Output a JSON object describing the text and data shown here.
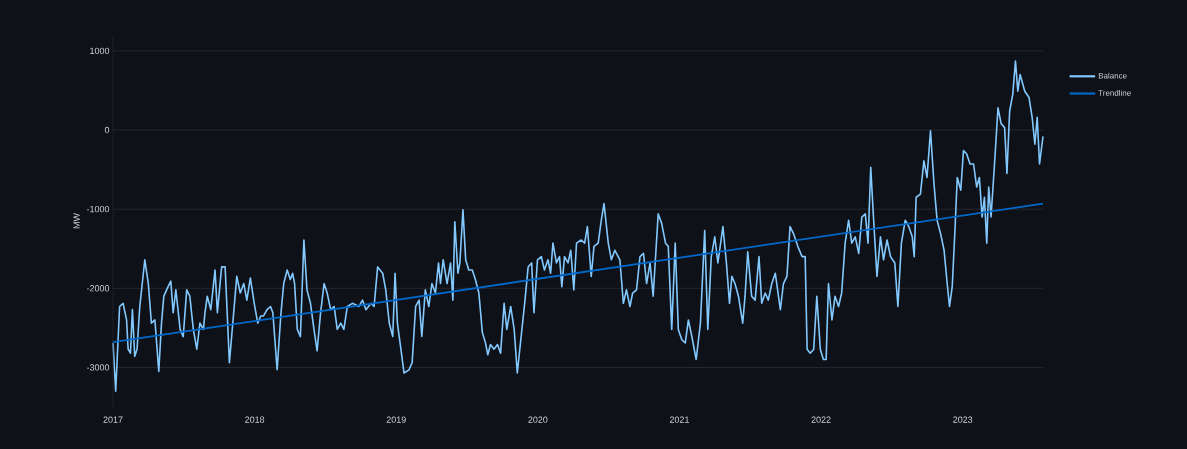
{
  "chart_data": {
    "type": "line",
    "ylabel": "MW",
    "xlim": [
      "2017-01-01",
      "2023-07-27"
    ],
    "xticks": [
      "2017",
      "2018",
      "2019",
      "2020",
      "2021",
      "2022",
      "2023"
    ],
    "ylim": [
      -3500,
      1200
    ],
    "yticks": [
      -3000,
      -2000,
      -1000,
      0,
      1000
    ],
    "grid": "y",
    "legend": "top right",
    "series": [
      {
        "name": "Balance",
        "color": "#83c9ff",
        "x": [
          "2017-01-01",
          "2017-01-08",
          "2017-01-18",
          "2017-01-27",
          "2017-02-05",
          "2017-02-09",
          "2017-02-15",
          "2017-02-20",
          "2017-02-26",
          "2017-03-04",
          "2017-03-11",
          "2017-03-24",
          "2017-04-02",
          "2017-04-10",
          "2017-04-19",
          "2017-04-29",
          "2017-05-06",
          "2017-05-12",
          "2017-05-23",
          "2017-05-30",
          "2017-06-05",
          "2017-06-12",
          "2017-06-23",
          "2017-07-01",
          "2017-07-10",
          "2017-07-18",
          "2017-07-27",
          "2017-08-05",
          "2017-08-13",
          "2017-08-22",
          "2017-08-26",
          "2017-09-01",
          "2017-09-10",
          "2017-09-21",
          "2017-09-27",
          "2017-10-08",
          "2017-10-17",
          "2017-10-28",
          "2017-11-08",
          "2017-11-16",
          "2017-11-25",
          "2017-12-04",
          "2017-12-12",
          "2017-12-21",
          "2017-12-31",
          "2018-01-09",
          "2018-01-17",
          "2018-01-24",
          "2018-02-02",
          "2018-02-11",
          "2018-02-17",
          "2018-02-28",
          "2018-03-10",
          "2018-03-17",
          "2018-03-26",
          "2018-04-03",
          "2018-04-09",
          "2018-04-14",
          "2018-04-21",
          "2018-04-29",
          "2018-05-08",
          "2018-05-16",
          "2018-05-25",
          "2018-06-03",
          "2018-06-11",
          "2018-06-20",
          "2018-06-29",
          "2018-07-07",
          "2018-07-16",
          "2018-07-25",
          "2018-08-02",
          "2018-08-11",
          "2018-08-19",
          "2018-08-28",
          "2018-09-10",
          "2018-09-27",
          "2018-10-06",
          "2018-10-15",
          "2018-10-28",
          "2018-11-05",
          "2018-11-14",
          "2018-11-27",
          "2018-12-05",
          "2018-12-14",
          "2018-12-23",
          "2018-12-29",
          "2019-01-04",
          "2019-01-12",
          "2019-01-21",
          "2019-02-03",
          "2019-02-11",
          "2019-02-20",
          "2019-03-01",
          "2019-03-08",
          "2019-03-17",
          "2019-03-26",
          "2019-04-03",
          "2019-04-12",
          "2019-04-20",
          "2019-04-25",
          "2019-05-02",
          "2019-05-12",
          "2019-05-21",
          "2019-05-27",
          "2019-06-01",
          "2019-06-09",
          "2019-06-14",
          "2019-06-22",
          "2019-06-29",
          "2019-07-07",
          "2019-07-16",
          "2019-07-24",
          "2019-08-02",
          "2019-08-11",
          "2019-08-19",
          "2019-08-25",
          "2019-09-01",
          "2019-09-10",
          "2019-09-19",
          "2019-09-27",
          "2019-10-06",
          "2019-10-13",
          "2019-10-23",
          "2019-11-01",
          "2019-11-09",
          "2019-11-20",
          "2019-11-28",
          "2019-12-07",
          "2019-12-16",
          "2019-12-22",
          "2019-12-31",
          "2020-01-10",
          "2020-01-18",
          "2020-01-27",
          "2020-02-03",
          "2020-02-09",
          "2020-02-18",
          "2020-02-26",
          "2020-03-03",
          "2020-03-10",
          "2020-03-19",
          "2020-03-26",
          "2020-04-03",
          "2020-04-10",
          "2020-04-22",
          "2020-05-01",
          "2020-05-08",
          "2020-05-18",
          "2020-05-25",
          "2020-06-05",
          "2020-06-13",
          "2020-06-20",
          "2020-07-01",
          "2020-07-09",
          "2020-07-18",
          "2020-07-31",
          "2020-08-09",
          "2020-08-17",
          "2020-08-26",
          "2020-09-02",
          "2020-09-12",
          "2020-09-21",
          "2020-09-30",
          "2020-10-08",
          "2020-10-17",
          "2020-10-25",
          "2020-11-07",
          "2020-11-16",
          "2020-11-26",
          "2020-12-03",
          "2020-12-12",
          "2020-12-21",
          "2020-12-29",
          "2021-01-07",
          "2021-01-16",
          "2021-01-24",
          "2021-02-02",
          "2021-02-13",
          "2021-02-24",
          "2021-03-07",
          "2021-03-15",
          "2021-03-24",
          "2021-04-02",
          "2021-04-10",
          "2021-04-23",
          "2021-05-02",
          "2021-05-10",
          "2021-05-16",
          "2021-05-24",
          "2021-06-02",
          "2021-06-13",
          "2021-06-19",
          "2021-06-26",
          "2021-07-06",
          "2021-07-15",
          "2021-07-25",
          "2021-08-01",
          "2021-08-10",
          "2021-08-18",
          "2021-08-27",
          "2021-09-05",
          "2021-09-18",
          "2021-09-26",
          "2021-10-05",
          "2021-10-13",
          "2021-10-22",
          "2021-11-02",
          "2021-11-13",
          "2021-11-21",
          "2021-11-26",
          "2021-12-04",
          "2021-12-13",
          "2021-12-21",
          "2021-12-30",
          "2022-01-07",
          "2022-01-14",
          "2022-01-20",
          "2022-01-29",
          "2022-02-06",
          "2022-02-15",
          "2022-02-23",
          "2022-03-04",
          "2022-03-13",
          "2022-03-21",
          "2022-03-30",
          "2022-04-08",
          "2022-04-16",
          "2022-04-25",
          "2022-05-02",
          "2022-05-09",
          "2022-05-16",
          "2022-05-25",
          "2022-06-03",
          "2022-06-11",
          "2022-06-20",
          "2022-06-29",
          "2022-07-10",
          "2022-07-18",
          "2022-07-27",
          "2022-08-06",
          "2022-08-15",
          "2022-08-24",
          "2022-08-29",
          "2022-09-03",
          "2022-09-14",
          "2022-09-23",
          "2022-10-01",
          "2022-10-10",
          "2022-10-19",
          "2022-10-27",
          "2022-11-05",
          "2022-11-14",
          "2022-11-22",
          "2022-11-28",
          "2022-12-05",
          "2022-12-12",
          "2022-12-18",
          "2022-12-27",
          "2023-01-03",
          "2023-01-11",
          "2023-01-20",
          "2023-01-29",
          "2023-02-06",
          "2023-02-13",
          "2023-02-20",
          "2023-02-26",
          "2023-03-04",
          "2023-03-09",
          "2023-03-15",
          "2023-03-24",
          "2023-04-02",
          "2023-04-10",
          "2023-04-19",
          "2023-04-25",
          "2023-05-02",
          "2023-05-10",
          "2023-05-17",
          "2023-05-23",
          "2023-05-29",
          "2023-06-10",
          "2023-06-21",
          "2023-06-29",
          "2023-07-06",
          "2023-07-12",
          "2023-07-18",
          "2023-07-27"
        ],
        "values": [
          -2690,
          -3300,
          -2230,
          -2190,
          -2400,
          -2770,
          -2820,
          -2270,
          -2860,
          -2770,
          -2230,
          -1640,
          -1940,
          -2440,
          -2400,
          -3050,
          -2440,
          -2100,
          -1980,
          -1910,
          -2310,
          -2020,
          -2520,
          -2610,
          -2020,
          -2100,
          -2520,
          -2770,
          -2440,
          -2520,
          -2310,
          -2100,
          -2270,
          -1770,
          -2310,
          -1730,
          -1730,
          -2940,
          -2310,
          -1850,
          -2060,
          -1940,
          -2150,
          -1870,
          -2190,
          -2440,
          -2350,
          -2350,
          -2270,
          -2230,
          -2310,
          -3030,
          -2310,
          -1940,
          -1770,
          -1890,
          -1810,
          -1940,
          -2520,
          -2610,
          -1390,
          -2020,
          -2190,
          -2520,
          -2790,
          -2310,
          -1940,
          -2060,
          -2270,
          -2230,
          -2520,
          -2440,
          -2520,
          -2230,
          -2190,
          -2230,
          -2150,
          -2270,
          -2190,
          -2230,
          -1730,
          -1810,
          -2020,
          -2440,
          -2610,
          -1810,
          -2440,
          -2730,
          -3070,
          -3030,
          -2940,
          -2230,
          -2150,
          -2610,
          -2020,
          -2230,
          -1940,
          -2060,
          -1680,
          -1940,
          -1640,
          -1940,
          -1680,
          -2150,
          -1160,
          -1810,
          -1680,
          -1010,
          -1640,
          -1770,
          -1770,
          -1890,
          -2060,
          -2560,
          -2690,
          -2840,
          -2710,
          -2770,
          -2710,
          -2820,
          -2190,
          -2520,
          -2230,
          -2520,
          -3070,
          -2560,
          -2190,
          -1730,
          -1680,
          -2310,
          -1640,
          -1600,
          -1770,
          -1640,
          -1810,
          -1430,
          -1680,
          -1600,
          -1980,
          -1600,
          -1680,
          -1520,
          -2020,
          -1430,
          -1390,
          -1430,
          -1220,
          -1850,
          -1470,
          -1430,
          -1140,
          -930,
          -1430,
          -1640,
          -1520,
          -1640,
          -2190,
          -2020,
          -2230,
          -2060,
          -2020,
          -1600,
          -1560,
          -1940,
          -1680,
          -2100,
          -1060,
          -1180,
          -1430,
          -1470,
          -2520,
          -1430,
          -2520,
          -2650,
          -2690,
          -2400,
          -2610,
          -2900,
          -2440,
          -1270,
          -2520,
          -1600,
          -1350,
          -1680,
          -1220,
          -1680,
          -2190,
          -1850,
          -1940,
          -2100,
          -2440,
          -2100,
          -1540,
          -2100,
          -2150,
          -1600,
          -2190,
          -2060,
          -2150,
          -1940,
          -1810,
          -2270,
          -1940,
          -1850,
          -1220,
          -1310,
          -1470,
          -1600,
          -1600,
          -2770,
          -2820,
          -2770,
          -2100,
          -2770,
          -2900,
          -2900,
          -1940,
          -2400,
          -2100,
          -2230,
          -2060,
          -1430,
          -1140,
          -1430,
          -1350,
          -1560,
          -1100,
          -1060,
          -1430,
          -470,
          -1100,
          -1850,
          -1350,
          -1640,
          -1390,
          -1600,
          -1680,
          -2230,
          -1430,
          -1140,
          -1220,
          -1350,
          -1600,
          -850,
          -810,
          -390,
          -600,
          -10,
          -680,
          -1140,
          -1310,
          -1520,
          -1940,
          -2230,
          -1980,
          -1270,
          -600,
          -760,
          -260,
          -300,
          -430,
          -430,
          -720,
          -600,
          -1100,
          -850,
          -1430,
          -720,
          -1100,
          -430,
          280,
          80,
          30,
          -550,
          240,
          450,
          870,
          490,
          700,
          490,
          410,
          160,
          -180,
          160,
          -430,
          -80
        ]
      },
      {
        "name": "Trendline",
        "color": "#0068c9",
        "x": [
          "2017-01-01",
          "2023-07-27"
        ],
        "values": [
          -2680,
          -930
        ]
      }
    ]
  }
}
